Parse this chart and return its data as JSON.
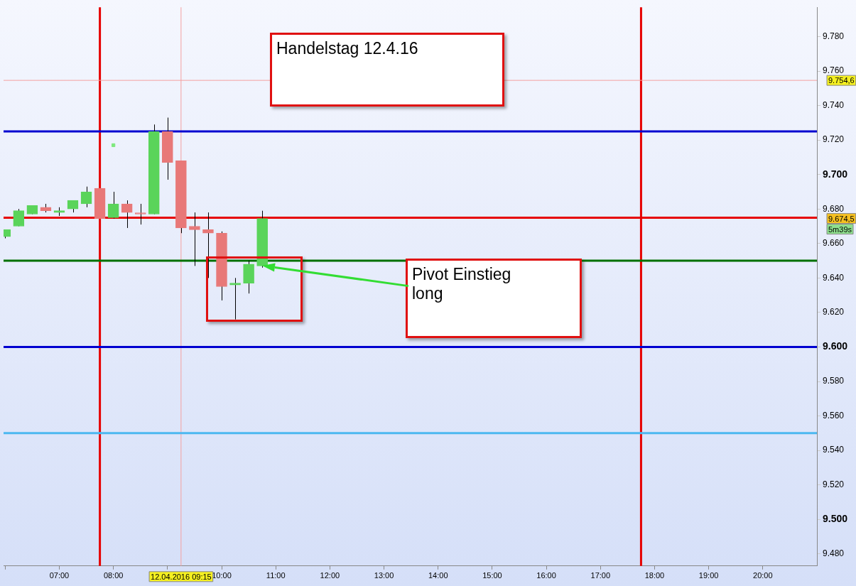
{
  "chart_data": {
    "type": "candlestick",
    "x": [
      6,
      6.25,
      6.5,
      6.75,
      7,
      7.25,
      7.5,
      7.75,
      8,
      8.25,
      8.5,
      8.75,
      9,
      9.25,
      9.5,
      9.75,
      10,
      10.25,
      10.5,
      10.75
    ],
    "ohlc": [
      [
        9664,
        9668,
        9663,
        9668
      ],
      [
        9670,
        9680,
        9670,
        9679
      ],
      [
        9677,
        9682,
        9677,
        9682
      ],
      [
        9681,
        9683,
        9678,
        9679
      ],
      [
        9678,
        9681,
        9676,
        9679
      ],
      [
        9680,
        9685,
        9678,
        9685
      ],
      [
        9683,
        9693,
        9681,
        9690
      ],
      [
        9692,
        9692,
        9674.5,
        9674.5
      ],
      [
        9675,
        9690,
        9674.5,
        9683
      ],
      [
        9683,
        9685,
        9669,
        9678
      ],
      [
        9677,
        9683,
        9671,
        9677
      ],
      [
        9677,
        9729,
        9677,
        9725
      ],
      [
        9725,
        9733,
        9697,
        9707
      ],
      [
        9708,
        9708,
        9666,
        9669
      ],
      [
        9670,
        9678,
        9647,
        9668
      ],
      [
        9668,
        9678,
        9640,
        9666
      ],
      [
        9666,
        9667,
        9627,
        9635
      ],
      [
        9636,
        9640,
        9616,
        9637
      ],
      [
        9637,
        9650,
        9631,
        9648
      ],
      [
        9647,
        9679,
        9646,
        9674.5
      ]
    ],
    "colors": [
      "#5ad45a",
      "#5ad45a",
      "#5ad45a",
      "#e87878",
      "#5ad45a",
      "#5ad45a",
      "#5ad45a",
      "#e87878",
      "#5ad45a",
      "#e87878",
      "#e87878",
      "#5ad45a",
      "#e87878",
      "#e87878",
      "#e87878",
      "#e87878",
      "#e87878",
      "#5ad45a",
      "#5ad45a",
      "#5ad45a"
    ],
    "series": [
      {
        "type": "scatter",
        "color": "#7ee87e",
        "x": [
          8
        ],
        "values": [
          9717
        ],
        "marker": "square"
      }
    ],
    "xlim": [
      5.97,
      21
    ],
    "xticks": [
      {
        "value": 6,
        "label": null
      },
      {
        "value": 7,
        "label": "07:00"
      },
      {
        "value": 8,
        "label": "08:00"
      },
      {
        "value": 9,
        "label": null
      },
      {
        "value": 10,
        "label": "10:00"
      },
      {
        "value": 11,
        "label": "11:00"
      },
      {
        "value": 12,
        "label": "12:00"
      },
      {
        "value": 13,
        "label": "13:00"
      },
      {
        "value": 14,
        "label": "14:00"
      },
      {
        "value": 15,
        "label": "15:00"
      },
      {
        "value": 16,
        "label": "16:00"
      },
      {
        "value": 17,
        "label": "17:00"
      },
      {
        "value": 18,
        "label": "18:00"
      },
      {
        "value": 19,
        "label": "19:00"
      },
      {
        "value": 20,
        "label": "20:00"
      }
    ],
    "ylim": [
      9473,
      9797
    ],
    "yticks": [
      {
        "value": 9480,
        "label": "9.480"
      },
      {
        "value": 9500,
        "label": "9.500"
      },
      {
        "value": 9520,
        "label": "9.520"
      },
      {
        "value": 9540,
        "label": "9.540"
      },
      {
        "value": 9560,
        "label": "9.560"
      },
      {
        "value": 9580,
        "label": "9.580"
      },
      {
        "value": 9600,
        "label": "9.600"
      },
      {
        "value": 9620,
        "label": "9.620"
      },
      {
        "value": 9640,
        "label": "9.640"
      },
      {
        "value": 9660,
        "label": "9.660"
      },
      {
        "value": 9680,
        "label": "9.680"
      },
      {
        "value": 9700,
        "label": "9.700"
      },
      {
        "value": 9720,
        "label": "9.720"
      },
      {
        "value": 9740,
        "label": "9.740"
      },
      {
        "value": 9760,
        "label": "9.760"
      },
      {
        "value": 9780,
        "label": "9.780"
      }
    ],
    "ref_lines": [
      {
        "axis": "x",
        "value": 7.75,
        "color": "#e60000"
      },
      {
        "axis": "x",
        "value": 17.75,
        "color": "#e60000"
      },
      {
        "axis": "x",
        "value": 9.25,
        "label": "12.04.2016 09:15",
        "color": "#f4a0a0"
      },
      {
        "axis": "y",
        "value": 9754.6,
        "label": "9.754,6",
        "color": "#f4a0a0"
      },
      {
        "axis": "y",
        "value": 9725,
        "color": "#0000d0"
      },
      {
        "axis": "y",
        "value": 9675,
        "color": "#e60000"
      },
      {
        "axis": "y",
        "value": 9650,
        "color": "#007000"
      },
      {
        "axis": "y",
        "value": 9600,
        "color": "#0000d0"
      },
      {
        "axis": "y",
        "value": 9550,
        "color": "#4cb8f0"
      }
    ],
    "annotations": [
      "Handelstag 12.4.16",
      "Pivot Einstieg long",
      "9.674,5",
      "5m39s"
    ],
    "grid": false,
    "legend": false
  }
}
